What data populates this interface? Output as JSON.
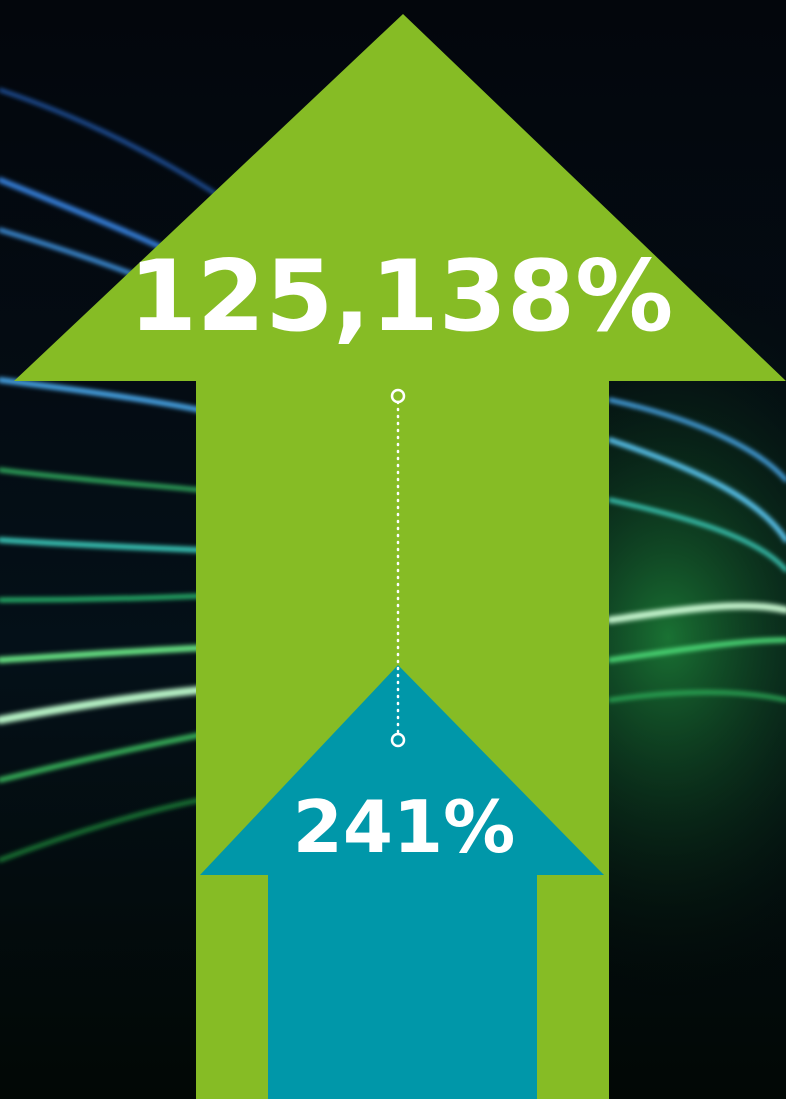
{
  "arrows": [
    {
      "label": "125,138%"
    },
    {
      "label": "241%"
    }
  ]
}
